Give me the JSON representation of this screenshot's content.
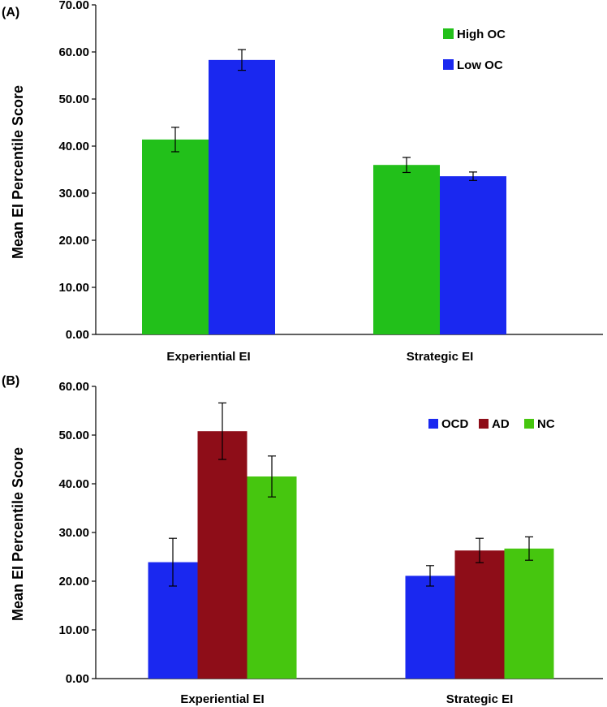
{
  "chart_data": [
    {
      "type": "bar",
      "panel_label": "(A)",
      "categories": [
        "Experiential EI",
        "Strategic EI"
      ],
      "ylabel": "Mean EI Percentile Score",
      "ylim": [
        0,
        70
      ],
      "yticks": [
        "0.00",
        "10.00",
        "20.00",
        "30.00",
        "40.00",
        "50.00",
        "60.00",
        "70.00"
      ],
      "legend_position": "top-right",
      "series": [
        {
          "name": "High OC",
          "color": "#22c01a",
          "values": [
            41.4,
            36.0
          ],
          "errors": [
            2.6,
            1.6
          ]
        },
        {
          "name": "Low OC",
          "color": "#1a28f0",
          "values": [
            58.3,
            33.6
          ],
          "errors": [
            2.2,
            0.9
          ]
        }
      ]
    },
    {
      "type": "bar",
      "panel_label": "(B)",
      "categories": [
        "Experiential EI",
        "Strategic EI"
      ],
      "ylabel": "Mean EI Percentile Score",
      "ylim": [
        0,
        60
      ],
      "yticks": [
        "0.00",
        "10.00",
        "20.00",
        "30.00",
        "40.00",
        "50.00",
        "60.00"
      ],
      "legend_position": "top-right",
      "series": [
        {
          "name": "OCD",
          "color": "#1a28f0",
          "values": [
            23.9,
            21.1
          ],
          "errors": [
            4.9,
            2.1
          ]
        },
        {
          "name": "AD",
          "color": "#8e0d18",
          "values": [
            50.8,
            26.3
          ],
          "errors": [
            5.8,
            2.5
          ]
        },
        {
          "name": "NC",
          "color": "#46c60f",
          "values": [
            41.5,
            26.7
          ],
          "errors": [
            4.2,
            2.4
          ]
        }
      ]
    }
  ]
}
